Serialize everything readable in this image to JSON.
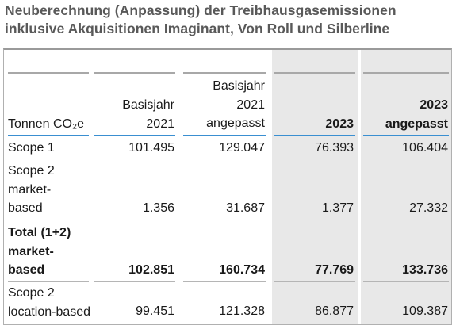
{
  "title": "Neuberechnung (Anpassung) der Treibhausgasemissionen inklusive Akquisitionen Imaginant, Von Roll und Silberline",
  "table": {
    "headers": {
      "unit": "Tonnen CO₂e",
      "col1": "Basisjahr 2021",
      "col2": "Basisjahr 2021 angepasst",
      "col3": "2023",
      "col4": "2023 angepasst"
    },
    "rows": [
      {
        "label": "Scope 1",
        "v1": "101.495",
        "v2": "129.047",
        "v3": "76.393",
        "v4": "106.404"
      },
      {
        "label": "Scope 2 market-based",
        "v1": "1.356",
        "v2": "31.687",
        "v3": "1.377",
        "v4": "27.332"
      },
      {
        "label": "Total (1+2) market-based",
        "v1": "102.851",
        "v2": "160.734",
        "v3": "77.769",
        "v4": "133.736"
      },
      {
        "label": "Scope 2 location-based",
        "v1": "99.451",
        "v2": "121.328",
        "v3": "86.877",
        "v4": "109.387"
      }
    ]
  },
  "colors": {
    "title": "#595959",
    "accent_rule": "#3a8fd1",
    "highlight_column": "#e8e8e8"
  }
}
